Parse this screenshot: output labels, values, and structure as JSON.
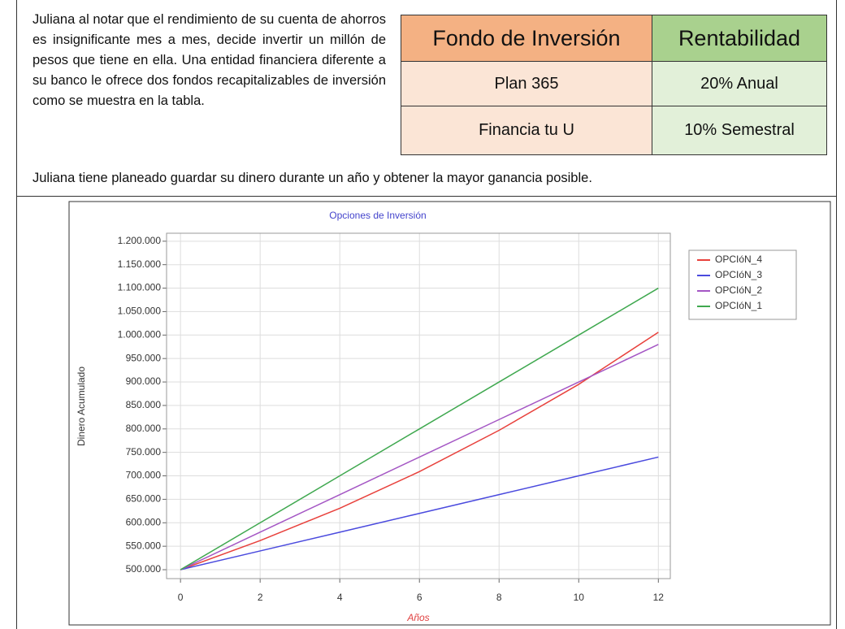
{
  "text": {
    "paragraph": "Juliana al notar que el rendimiento de su cuenta de ahorros es insignificante mes a mes, decide invertir un millón de pesos que tiene en ella. Una entidad financiera diferente a su banco le ofrece dos fondos recapitalizables de inversión como se muestra en la tabla.",
    "sentence": "Juliana tiene planeado guardar su dinero durante un año y obtener la mayor ganancia posible."
  },
  "table": {
    "header": [
      "Fondo de Inversión",
      "Rentabilidad"
    ],
    "rows": [
      [
        "Plan 365",
        "20% Anual"
      ],
      [
        "Financia tu U",
        "10% Semestral"
      ]
    ]
  },
  "chart_data": {
    "type": "line",
    "title": "Opciones de Inversión",
    "xlabel": "Años",
    "ylabel": "Dinero Acumulado",
    "x": [
      0,
      2,
      4,
      6,
      8,
      10,
      12
    ],
    "series": [
      {
        "name": "OPCIóN_4",
        "color": "#e8413c",
        "values": [
          500000,
          562000,
          631000,
          709000,
          797000,
          895000,
          1006000
        ]
      },
      {
        "name": "OPCIóN_3",
        "color": "#4a4ade",
        "values": [
          500000,
          540000,
          580000,
          620000,
          660000,
          700000,
          740000
        ]
      },
      {
        "name": "OPCIóN_2",
        "color": "#a456c4",
        "values": [
          500000,
          580000,
          660000,
          740000,
          820000,
          900000,
          980000
        ]
      },
      {
        "name": "OPCIóN_1",
        "color": "#3fa84f",
        "values": [
          500000,
          600000,
          700000,
          800000,
          900000,
          1000000,
          1100000
        ]
      }
    ],
    "xlim": [
      -0.35,
      12.3
    ],
    "xticks": [
      0,
      2,
      4,
      6,
      8,
      10,
      12
    ],
    "ylim": [
      481000,
      1217000
    ],
    "yticks": [
      {
        "value": 500000,
        "label": "500.000"
      },
      {
        "value": 550000,
        "label": "550.000"
      },
      {
        "value": 600000,
        "label": "600.000"
      },
      {
        "value": 650000,
        "label": "650.000"
      },
      {
        "value": 700000,
        "label": "700.000"
      },
      {
        "value": 750000,
        "label": "750.000"
      },
      {
        "value": 800000,
        "label": "800.000"
      },
      {
        "value": 850000,
        "label": "850.000"
      },
      {
        "value": 900000,
        "label": "900.000"
      },
      {
        "value": 950000,
        "label": "950.000"
      },
      {
        "value": 1000000,
        "label": "1.000.000"
      },
      {
        "value": 1050000,
        "label": "1.050.000"
      },
      {
        "value": 1100000,
        "label": "1.100.000"
      },
      {
        "value": 1150000,
        "label": "1.150.000"
      },
      {
        "value": 1200000,
        "label": "1.200.000"
      }
    ],
    "grid": true,
    "legend": "top-right"
  }
}
